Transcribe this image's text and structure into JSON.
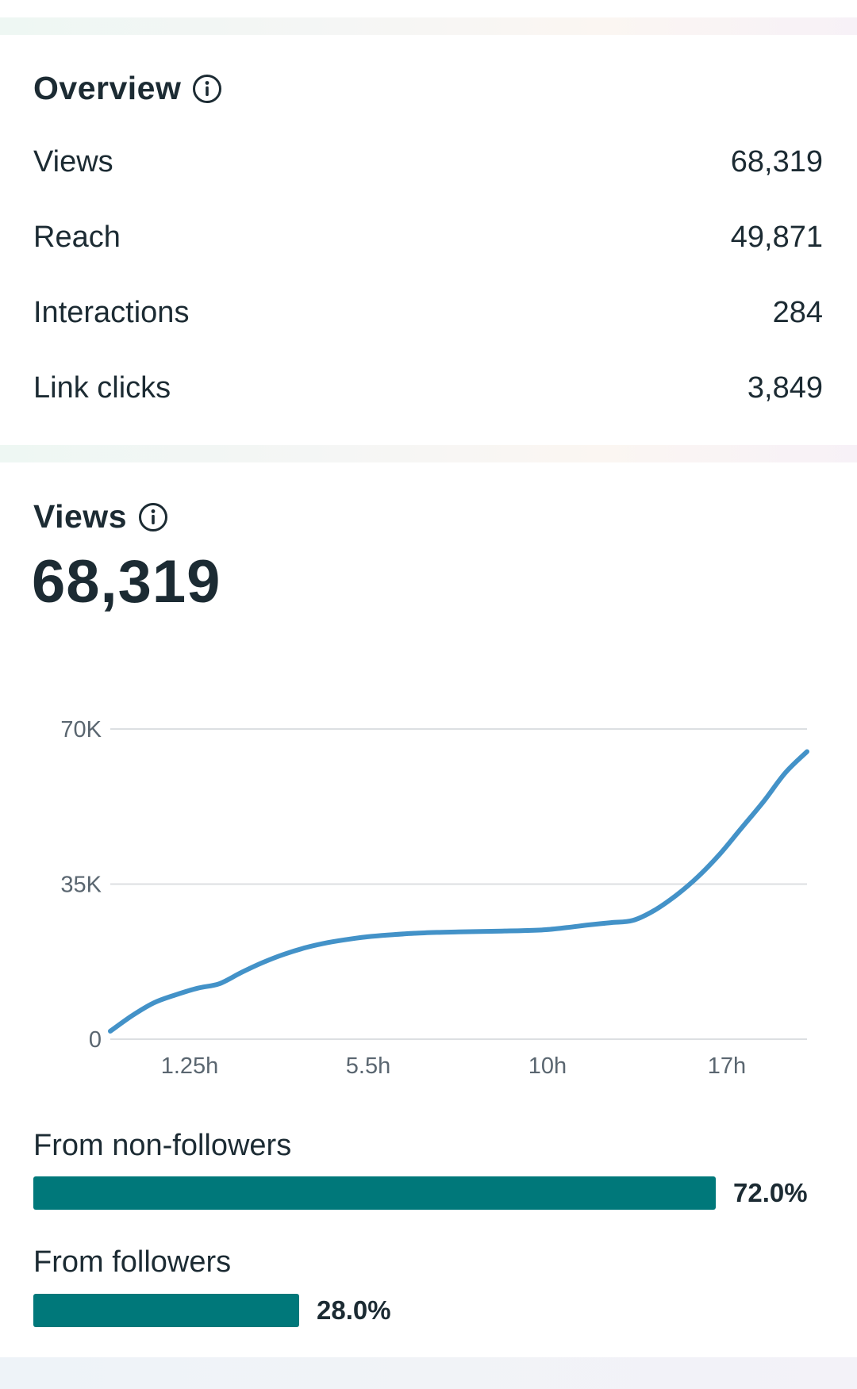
{
  "overview": {
    "title": "Overview",
    "info_icon": "info-icon",
    "rows": [
      {
        "label": "Views",
        "value": "68,319"
      },
      {
        "label": "Reach",
        "value": "49,871"
      },
      {
        "label": "Interactions",
        "value": "284"
      },
      {
        "label": "Link clicks",
        "value": "3,849"
      }
    ]
  },
  "views": {
    "title": "Views",
    "info_icon": "info-icon",
    "total": "68,319"
  },
  "chart_data": {
    "type": "line",
    "title": "",
    "xlabel": "",
    "ylabel": "",
    "y_ticks": [
      "0",
      "35K",
      "70K"
    ],
    "x_ticks": [
      "1.25h",
      "5.5h",
      "10h",
      "17h"
    ],
    "ylim": [
      0,
      70000
    ],
    "grid": true,
    "line_color": "#4392c8",
    "series": [
      {
        "values": [
          1800,
          5300,
          8200,
          10000,
          11500,
          12500,
          15000,
          17300,
          19200,
          20700,
          21800,
          22600,
          23200,
          23600,
          23900,
          24100,
          24200,
          24300,
          24400,
          24500,
          24700,
          25200,
          25800,
          26300,
          26800,
          29100,
          32500,
          36700,
          41800,
          47700,
          53600,
          60100,
          64900
        ]
      }
    ]
  },
  "breakdown": {
    "accent_color": "#00787a",
    "items": [
      {
        "label": "From non-followers",
        "percent_text": "72.0%",
        "fraction": 0.72
      },
      {
        "label": "From followers",
        "percent_text": "28.0%",
        "fraction": 0.28
      }
    ]
  }
}
